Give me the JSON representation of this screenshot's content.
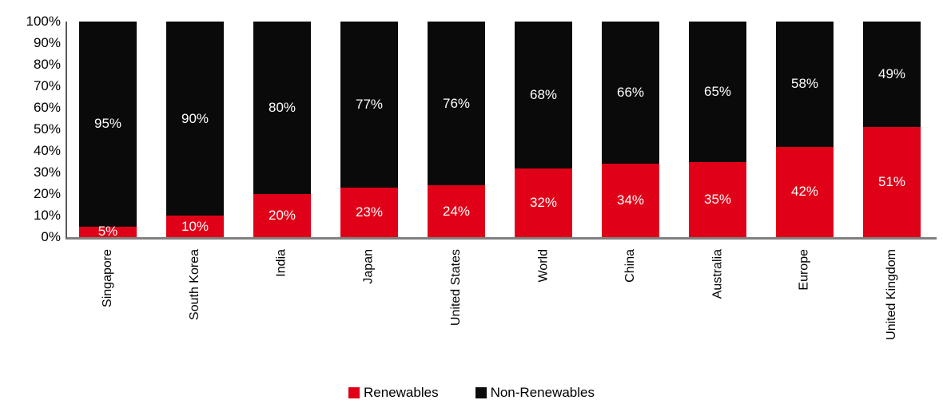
{
  "chart_data": {
    "type": "bar",
    "stacked": true,
    "orientation": "vertical",
    "title": "",
    "xlabel": "",
    "ylabel": "",
    "categories": [
      "Singapore",
      "South Korea",
      "India",
      "Japan",
      "United States",
      "World",
      "China",
      "Australia",
      "Europe",
      "United Kingdom"
    ],
    "series": [
      {
        "name": "Renewables",
        "color": "#E00018",
        "values": [
          5,
          10,
          20,
          23,
          24,
          32,
          34,
          35,
          42,
          51
        ]
      },
      {
        "name": "Non-Renewables",
        "color": "#0A0A0A",
        "values": [
          95,
          90,
          80,
          77,
          76,
          68,
          66,
          65,
          58,
          49
        ]
      }
    ],
    "bar_value_labels": {
      "Renewables": [
        "5%",
        "10%",
        "20%",
        "23%",
        "24%",
        "32%",
        "34%",
        "35%",
        "42%",
        "51%"
      ],
      "Non-Renewables": [
        "95%",
        "90%",
        "80%",
        "77%",
        "76%",
        "68%",
        "66%",
        "65%",
        "58%",
        "49%"
      ],
      "color": "#FFFFFF"
    },
    "y_axis": {
      "min": 0,
      "max": 100,
      "step": 10,
      "ticks": [
        "0%",
        "10%",
        "20%",
        "30%",
        "40%",
        "50%",
        "60%",
        "70%",
        "80%",
        "90%",
        "100%"
      ],
      "gridlines": false
    },
    "legend": {
      "position": "bottom",
      "entries": [
        "Renewables",
        "Non-Renewables"
      ]
    },
    "colors": {
      "renewables": "#E00018",
      "non_renewables": "#0A0A0A",
      "x_axis_line": "#808080",
      "y_axis_line": "#595959",
      "tick_text": "#000000",
      "background": "#FFFFFF"
    }
  }
}
